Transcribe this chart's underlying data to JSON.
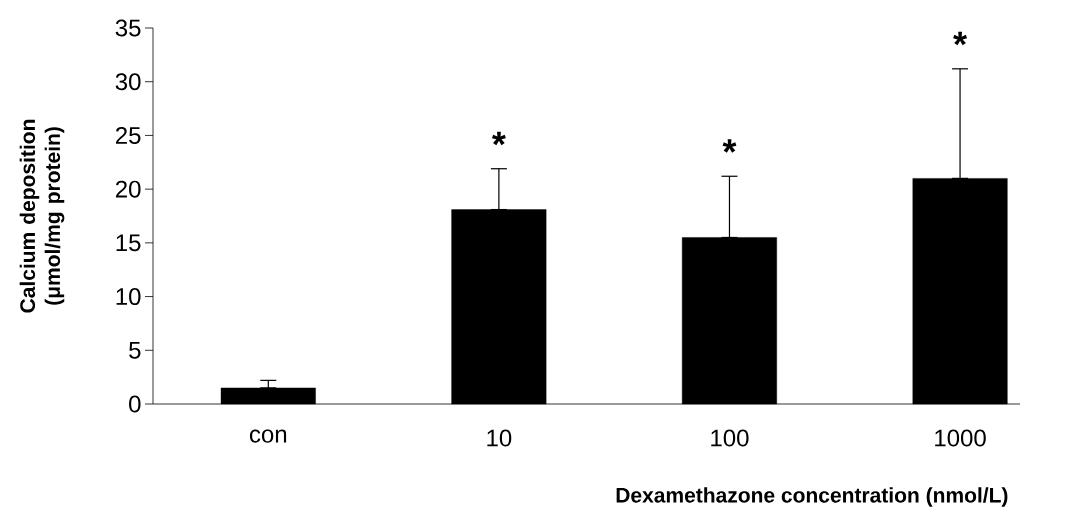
{
  "chart_data": {
    "type": "bar",
    "xlabel": "Dexamethazone concentration (nmol/L)",
    "ylabel": "Calcium deposition (μmol/mg protein)",
    "categories": [
      "con",
      "10",
      "100",
      "1000"
    ],
    "values": [
      1.5,
      18.1,
      15.5,
      21.0
    ],
    "errors": [
      [
        1.5,
        2.2
      ],
      [
        18.1,
        21.9
      ],
      [
        15.5,
        21.2
      ],
      [
        21.0,
        31.2
      ]
    ],
    "color": "#000000",
    "ylim": [
      0,
      35
    ],
    "yticks": [
      0,
      5,
      10,
      15,
      20,
      25,
      30,
      35
    ],
    "annotations": [
      "*",
      "*",
      "*"
    ]
  }
}
